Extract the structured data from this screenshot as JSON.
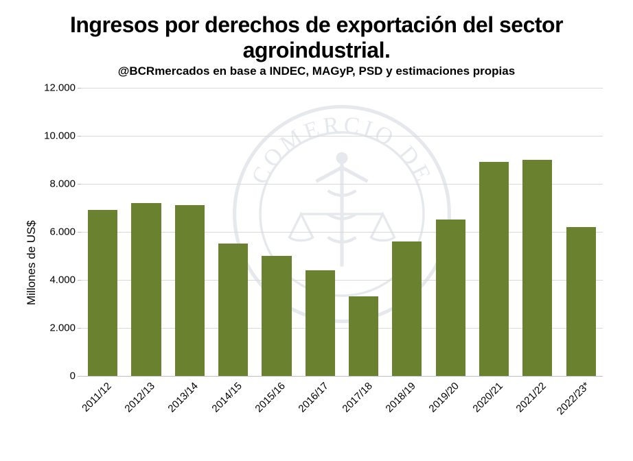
{
  "chart": {
    "type": "bar",
    "title": "Ingresos por derechos de exportación del sector agroindustrial.",
    "subtitle": "@BCRmercados en base a INDEC, MAGyP, PSD y estimaciones propias",
    "ylabel": "Millones de US$",
    "ylim": [
      0,
      12000
    ],
    "yticks": [
      0,
      2000,
      4000,
      6000,
      8000,
      10000,
      12000
    ],
    "ytick_labels": [
      "0",
      "2.000",
      "4.000",
      "6.000",
      "8.000",
      "10.000",
      "12.000"
    ],
    "categories": [
      "2011/12",
      "2012/13",
      "2013/14",
      "2014/15",
      "2015/16",
      "2016/17",
      "2017/18",
      "2018/19",
      "2019/20",
      "2020/21",
      "2021/22",
      "2022/23*"
    ],
    "values": [
      6900,
      7200,
      7100,
      5500,
      5000,
      4400,
      3300,
      5600,
      6500,
      8900,
      9000,
      6200
    ],
    "value_labels": [
      "6.900",
      "7.200",
      "7.100",
      "5.500",
      "5.000",
      "4.400",
      "3.300",
      "5.600",
      "6.500",
      "8.900",
      "9.000",
      "6.200"
    ],
    "bar_color": "#6a8230",
    "value_label_color": "#ffffff",
    "background_color": "#ffffff",
    "grid_color": "#d9d9d9",
    "axis_color": "#bfbfbf",
    "title_fontsize": 32,
    "subtitle_fontsize": 17,
    "label_fontsize": 17,
    "tick_fontsize": 15,
    "value_fontsize": 15,
    "bar_width_ratio": 0.68,
    "watermark_color": "#8f9db3",
    "watermark_opacity": 0.15,
    "watermark_text": "COMERCIO DE ROS"
  }
}
